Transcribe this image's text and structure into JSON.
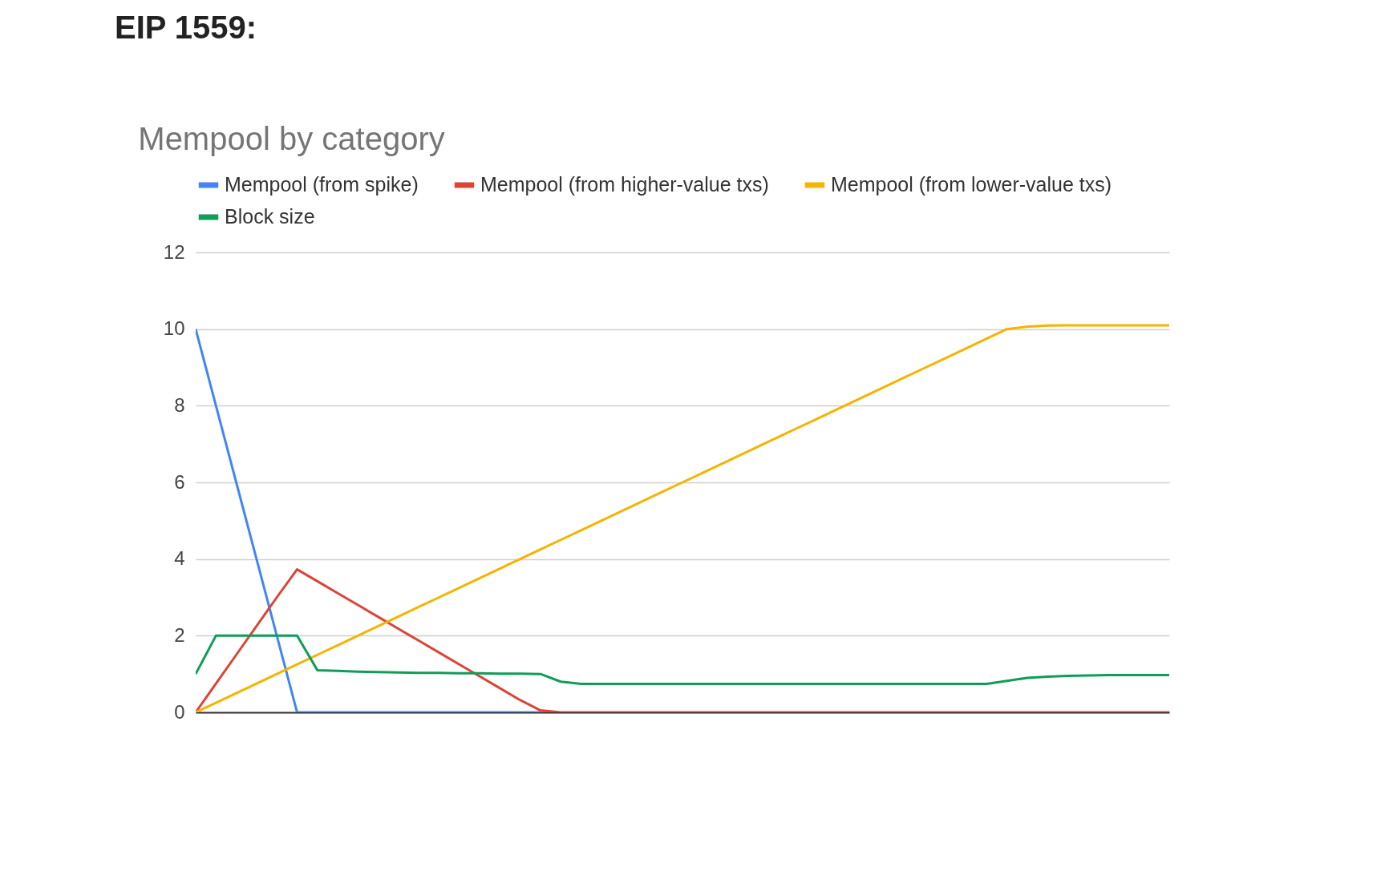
{
  "chart_data": {
    "type": "line",
    "title": "EIP 1559:",
    "subtitle": "Mempool by category",
    "categories": [
      null,
      null,
      null,
      null,
      null,
      null,
      null,
      null,
      null,
      null,
      null,
      null,
      null,
      null,
      null,
      null,
      null,
      null,
      null,
      null,
      null,
      null,
      null,
      null,
      null,
      null,
      null,
      null,
      null,
      null,
      null,
      null,
      null,
      null,
      null,
      null,
      null,
      null,
      null,
      null,
      null,
      null,
      null,
      null,
      null,
      null,
      null,
      null,
      null
    ],
    "series": [
      {
        "name": "Mempool (from spike)",
        "color": "#4285f4",
        "values": [
          10,
          8,
          6,
          4,
          2,
          0,
          0,
          0,
          0,
          0,
          0,
          0,
          0,
          0,
          0,
          0,
          0,
          0,
          null,
          null,
          null,
          null,
          null,
          null,
          null,
          null,
          null,
          null,
          null,
          null,
          null,
          null,
          null,
          null,
          null,
          null,
          null,
          null,
          null,
          null,
          null,
          null,
          null,
          null,
          null,
          null,
          null,
          null,
          null
        ]
      },
      {
        "name": "Mempool (from higher-value txs)",
        "color": "#db4437",
        "values": [
          0,
          0.75,
          1.5,
          2.25,
          3,
          3.73,
          3.42,
          3.11,
          2.8,
          2.49,
          2.18,
          1.87,
          1.56,
          1.25,
          0.94,
          0.63,
          0.32,
          0.05,
          0,
          0,
          0,
          0,
          0,
          0,
          0,
          0,
          0,
          0,
          0,
          0,
          0,
          0,
          0,
          0,
          0,
          0,
          0,
          0,
          0,
          0,
          0,
          0,
          0,
          0,
          0,
          0,
          0,
          0,
          0
        ]
      },
      {
        "name": "Mempool (from lower-value txs)",
        "color": "#f4b400",
        "values": [
          0,
          0.25,
          0.5,
          0.75,
          1,
          1.25,
          1.5,
          1.75,
          2,
          2.25,
          2.5,
          2.75,
          3,
          3.25,
          3.5,
          3.75,
          4,
          4.25,
          4.5,
          4.75,
          5,
          5.25,
          5.5,
          5.75,
          6,
          6.25,
          6.5,
          6.75,
          7,
          7.25,
          7.5,
          7.75,
          8,
          8.25,
          8.5,
          8.75,
          9,
          9.25,
          9.5,
          9.75,
          10,
          10.06,
          10.09,
          10.1,
          10.1,
          10.1,
          10.1,
          10.1,
          10.1
        ]
      },
      {
        "name": "Block size",
        "color": "#0f9d58",
        "values": [
          1,
          2,
          2,
          2,
          2,
          2,
          1.1,
          1.08,
          1.06,
          1.05,
          1.04,
          1.03,
          1.03,
          1.02,
          1.02,
          1.01,
          1.01,
          1,
          0.8,
          0.74,
          0.74,
          0.74,
          0.74,
          0.74,
          0.74,
          0.74,
          0.74,
          0.74,
          0.74,
          0.74,
          0.74,
          0.74,
          0.74,
          0.74,
          0.74,
          0.74,
          0.74,
          0.74,
          0.74,
          0.74,
          0.82,
          0.9,
          0.93,
          0.95,
          0.96,
          0.97,
          0.97,
          0.97,
          0.97
        ]
      }
    ],
    "ylim": [
      0,
      12
    ],
    "yticks": [
      0,
      2,
      4,
      6,
      8,
      10,
      12
    ],
    "grid": "y",
    "legend": "top",
    "tick_labels": "y"
  }
}
